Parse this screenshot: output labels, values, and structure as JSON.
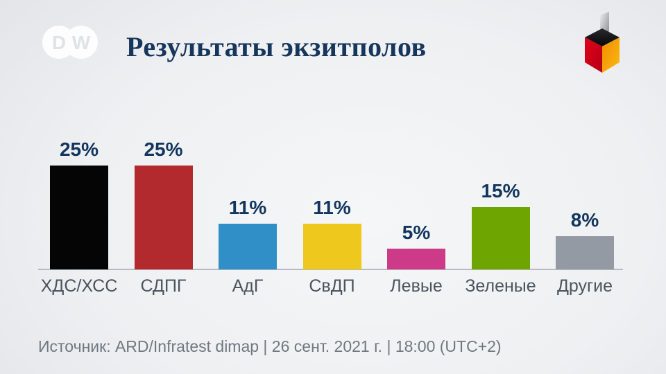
{
  "header": {
    "title": "Результаты экзитполов",
    "logo_text_d": "D",
    "logo_text_w": "W"
  },
  "chart_data": {
    "type": "bar",
    "title": "Результаты экзитполов",
    "categories": [
      "ХДС/ХСС",
      "СДПГ",
      "АдГ",
      "СвДП",
      "Левые",
      "Зеленые",
      "Другие"
    ],
    "values": [
      25,
      25,
      11,
      11,
      5,
      15,
      8
    ],
    "value_labels": [
      "25%",
      "25%",
      "11%",
      "11%",
      "5%",
      "15%",
      "8%"
    ],
    "colors": [
      "#050505",
      "#b2292e",
      "#2f8fc6",
      "#eec81d",
      "#cc3a88",
      "#6fa500",
      "#949aa4"
    ],
    "unit": "%",
    "xlabel": "",
    "ylabel": "",
    "ylim": [
      0,
      27
    ],
    "gridlines": false,
    "legend": "none",
    "value_label_color": "#12355e",
    "category_label_color": "#4a545e",
    "axis_line_color": "#b7bbc1"
  },
  "footer": {
    "source": "Источник: ARD/Infratest dimap | 26 сент. 2021 г. | 18:00 (UTC+2)"
  }
}
